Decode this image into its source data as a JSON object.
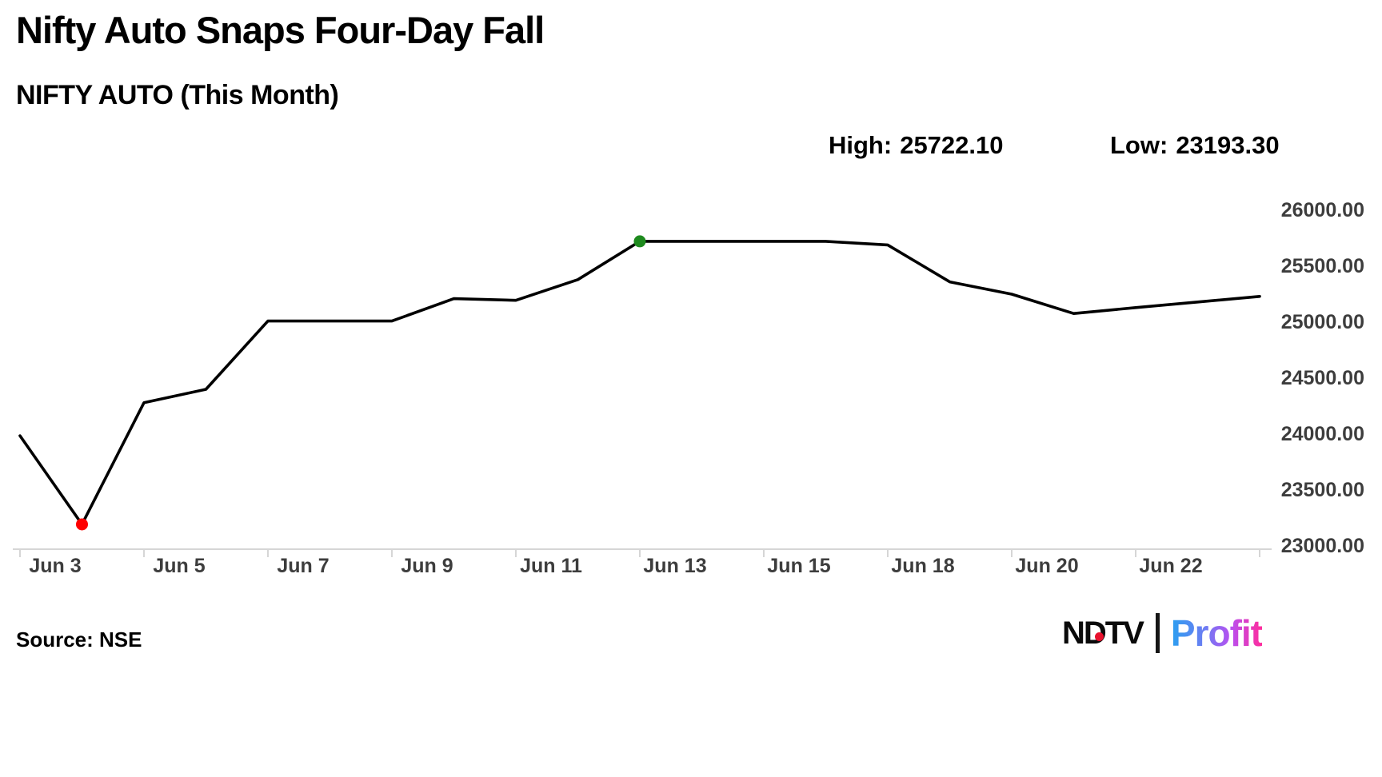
{
  "header": {
    "title": "Nifty Auto Snaps Four-Day Fall",
    "subtitle": "NIFTY AUTO (This Month)",
    "high_label": "High:",
    "high_value": "25722.10",
    "low_label": "Low:",
    "low_value": "23193.30"
  },
  "footer": {
    "source": "Source: NSE",
    "logo_ndtv": "NDTV",
    "logo_profit": "Profit"
  },
  "colors": {
    "line": "#000000",
    "low_marker": "#fe0000",
    "high_marker": "#1e8a1e",
    "axis": "#d6d6d6",
    "axis_label": "#3d3d3d",
    "ndtv_red": "#e8112d",
    "profit_gradient_start": "#2b9ff0",
    "profit_gradient_end": "#ff2d9c"
  },
  "chart_data": {
    "type": "line",
    "title": "NIFTY AUTO (This Month)",
    "ylabel": "",
    "xlabel": "",
    "ylim": [
      23000,
      26000
    ],
    "grid": false,
    "legend": "none",
    "high": 25722.1,
    "low": 23193.3,
    "series": [
      {
        "name": "NIFTY AUTO",
        "points": [
          {
            "label": "Jun 3",
            "value": 23985
          },
          {
            "label": "Jun 4",
            "value": 23193.3,
            "marker": "low"
          },
          {
            "label": "Jun 5",
            "value": 24280
          },
          {
            "label": "Jun 6",
            "value": 24400
          },
          {
            "label": "Jun 7",
            "value": 25010
          },
          {
            "label": "Jun 8",
            "value": 25010
          },
          {
            "label": "Jun 9",
            "value": 25010
          },
          {
            "label": "Jun 10",
            "value": 25210
          },
          {
            "label": "Jun 11",
            "value": 25195
          },
          {
            "label": "Jun 12",
            "value": 25380
          },
          {
            "label": "Jun 13",
            "value": 25722.1,
            "marker": "high"
          },
          {
            "label": "Jun 14",
            "value": 25722.1
          },
          {
            "label": "Jun 15",
            "value": 25722.1
          },
          {
            "label": "Jun 17",
            "value": 25722.1
          },
          {
            "label": "Jun 18",
            "value": 25690
          },
          {
            "label": "Jun 19",
            "value": 25360
          },
          {
            "label": "Jun 20",
            "value": 25250
          },
          {
            "label": "Jun 21",
            "value": 25077
          },
          {
            "label": "Jun 22",
            "value": 25130
          },
          {
            "label": "Jun 23",
            "value": 25180
          },
          {
            "label": "Jun 24",
            "value": 25230
          }
        ]
      }
    ],
    "x_axis": {
      "tick_label_indices": [
        0,
        2,
        4,
        6,
        8,
        10,
        12,
        14,
        16,
        18
      ],
      "tick_labels": [
        "Jun 3",
        "Jun 5",
        "Jun 7",
        "Jun 9",
        "Jun 11",
        "Jun 13",
        "Jun 15",
        "Jun 18",
        "Jun 20",
        "Jun 22"
      ]
    },
    "y_axis": {
      "side": "right",
      "ticks": [
        {
          "label": "26000.00",
          "value": 26000
        },
        {
          "label": "25500.00",
          "value": 25500
        },
        {
          "label": "25000.00",
          "value": 25000
        },
        {
          "label": "24500.00",
          "value": 24500
        },
        {
          "label": "24000.00",
          "value": 24000
        },
        {
          "label": "23500.00",
          "value": 23500
        },
        {
          "label": "23000.00",
          "value": 23000
        }
      ]
    }
  }
}
